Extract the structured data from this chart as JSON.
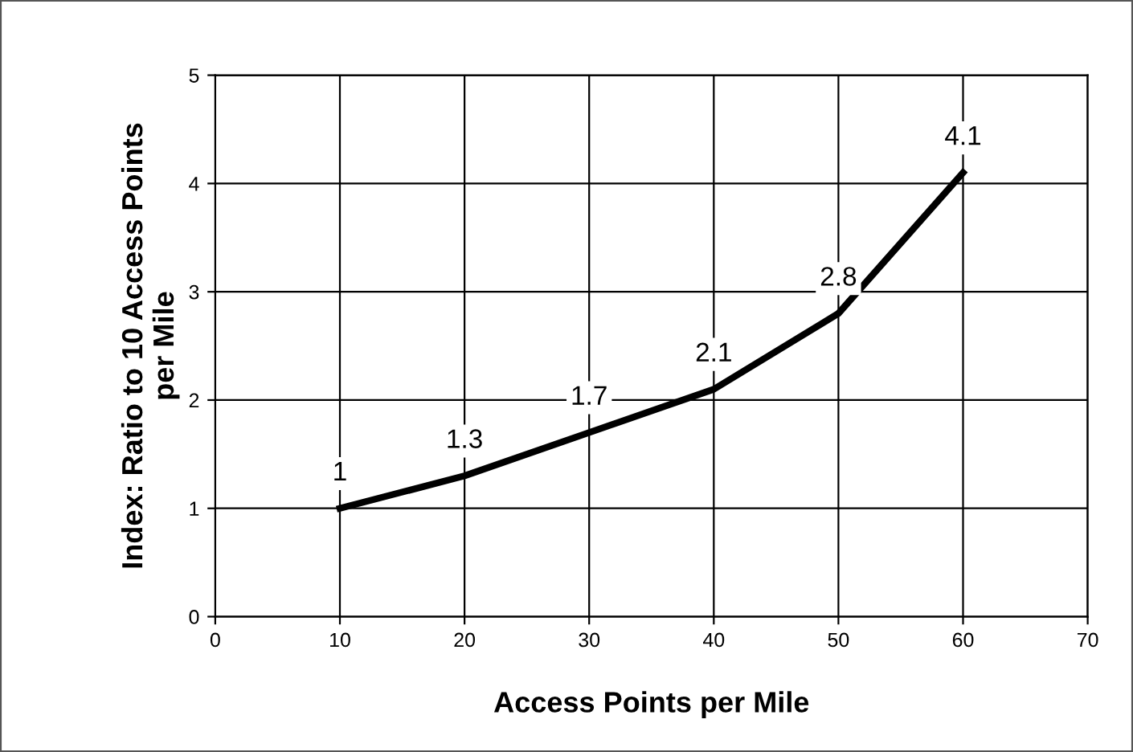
{
  "chart_data": {
    "type": "line",
    "xlabel": "Access Points per Mile",
    "ylabel": "Index: Ratio to 10 Access Points\nper Mile",
    "x": [
      10,
      20,
      30,
      40,
      50,
      60
    ],
    "series": [
      {
        "color": "#000000",
        "values": [
          1,
          1.3,
          1.7,
          2.1,
          2.8,
          4.1
        ]
      }
    ],
    "xlim": [
      0,
      70
    ],
    "xticks": [
      0,
      10,
      20,
      30,
      40,
      50,
      60,
      70
    ],
    "ylim": [
      0,
      5
    ],
    "yticks": [
      0,
      1,
      2,
      3,
      4,
      5
    ],
    "grid": true,
    "data_labels": true,
    "marker": "none",
    "line_style": "solid",
    "legend": false
  }
}
